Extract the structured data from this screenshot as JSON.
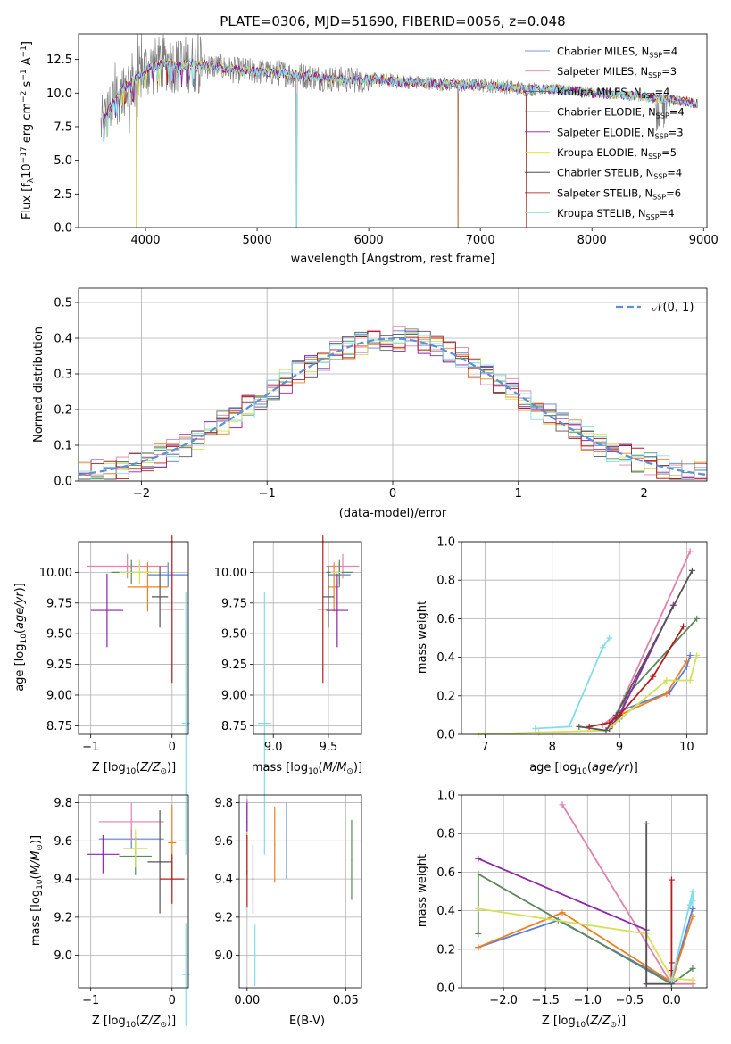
{
  "chart_data": [
    {
      "type": "line",
      "title": "PLATE=0306, MJD=51690, FIBERID=0056, z=0.048",
      "xlabel": "wavelength [Angstrom, rest frame]",
      "ylabel": "Flux [f_λ 10^-17 erg cm^-2 s^-1 A^-1]",
      "xlim": [
        3400,
        9030
      ],
      "ylim": [
        0,
        14.4
      ],
      "xticks": [
        4000,
        5000,
        6000,
        7000,
        8000,
        9000
      ],
      "yticks": [
        0.0,
        2.5,
        5.0,
        7.5,
        10.0,
        12.5
      ],
      "legend": "top-right",
      "series": [
        {
          "name": "Chabrier MILES, N_SSP=4",
          "color": "#4f6fd0"
        },
        {
          "name": "Salpeter MILES, N_SSP=3",
          "color": "#e889a6"
        },
        {
          "name": "Kroupa MILES, N_SSP=4",
          "color": "#3b4f9a"
        },
        {
          "name": "Chabrier ELODIE, N_SSP=4",
          "color": "#3e7a3e"
        },
        {
          "name": "Salpeter ELODIE, N_SSP=3",
          "color": "#8a1fa0"
        },
        {
          "name": "Kroupa ELODIE, N_SSP=5",
          "color": "#e6e600"
        },
        {
          "name": "Chabrier STELIB, N_SSP=4",
          "color": "#333333"
        },
        {
          "name": "Salpeter STELIB, N_SSP=6",
          "color": "#b30000"
        },
        {
          "name": "Kroupa STELIB, N_SSP=4",
          "color": "#7fdede"
        }
      ],
      "spectrum_shape": {
        "x": [
          3600,
          3700,
          3800,
          3900,
          4000,
          4100,
          4200,
          4300,
          4400,
          4600,
          4800,
          5000,
          5200,
          5400,
          5600,
          5800,
          6000,
          6200,
          6400,
          6600,
          6800,
          7000,
          7200,
          7400,
          7600,
          7800,
          8000,
          8200,
          8400,
          8600,
          8800,
          9000
        ],
        "y": [
          7.5,
          9.2,
          10.4,
          11.0,
          11.8,
          12.0,
          12.3,
          12.0,
          12.2,
          12.0,
          11.7,
          11.6,
          11.5,
          11.3,
          11.1,
          11.0,
          11.0,
          10.9,
          10.8,
          10.7,
          10.6,
          10.6,
          10.5,
          10.3,
          10.3,
          10.2,
          10.0,
          9.9,
          9.8,
          9.6,
          9.4,
          9.2
        ]
      }
    },
    {
      "type": "line",
      "xlabel": "(data-model)/error",
      "ylabel": "Normed distribution",
      "xlim": [
        -2.5,
        2.5
      ],
      "ylim": [
        0,
        0.54
      ],
      "xticks": [
        -2,
        -1,
        0,
        1,
        2
      ],
      "yticks": [
        0.0,
        0.1,
        0.2,
        0.3,
        0.4,
        0.5
      ],
      "legend": "top-right",
      "legend_label": "𝒩(0, 1)",
      "bin_width": 0.1
    },
    {
      "type": "scatter",
      "xlabel": "Z [log10(Z/Z⊙)]",
      "ylabel": "age  [log10(age/yr)]",
      "xlim": [
        -1.15,
        0.2
      ],
      "ylim": [
        8.68,
        10.25
      ],
      "xticks": [
        -1,
        0
      ],
      "yticks": [
        8.75,
        9.0,
        9.25,
        9.5,
        9.75,
        10.0
      ]
    },
    {
      "type": "scatter",
      "xlabel": "mass [log10(M/M⊙)]",
      "xlim": [
        8.82,
        9.8
      ],
      "ylim": [
        8.68,
        10.25
      ],
      "xticks": [
        9.0,
        9.5
      ],
      "yticks": [
        8.75,
        9.0,
        9.25,
        9.5,
        9.75,
        10.0
      ]
    },
    {
      "type": "line",
      "xlabel": "age  [log10(age/yr)]",
      "ylabel": "mass weight",
      "xlim": [
        6.65,
        10.3
      ],
      "ylim": [
        0,
        1.0
      ],
      "xticks": [
        7,
        8,
        9,
        10
      ],
      "yticks": [
        0.0,
        0.2,
        0.4,
        0.6,
        0.8,
        1.0
      ]
    },
    {
      "type": "scatter",
      "xlabel": "Z [log10(Z/Z⊙)]",
      "ylabel": "mass [log10(M/M⊙)]",
      "xlim": [
        -1.15,
        0.2
      ],
      "ylim": [
        8.83,
        9.84
      ],
      "xticks": [
        -1,
        0
      ],
      "yticks": [
        9.0,
        9.2,
        9.4,
        9.6,
        9.8
      ]
    },
    {
      "type": "scatter",
      "xlabel": "E(B-V)",
      "xlim": [
        -0.004,
        0.058
      ],
      "ylim": [
        8.83,
        9.84
      ],
      "xticks": [
        0.0,
        0.05
      ],
      "xticklabels": [
        "0.00",
        "0.05"
      ],
      "yticks": [
        9.0,
        9.2,
        9.4,
        9.6,
        9.8
      ]
    },
    {
      "type": "line",
      "xlabel": "Z [log10(Z/Z⊙)]",
      "ylabel": "mass weight",
      "xlim": [
        -2.5,
        0.42
      ],
      "ylim": [
        0,
        1.0
      ],
      "xticks": [
        -2.0,
        -1.5,
        -1.0,
        -0.5,
        0.0
      ],
      "yticks": [
        0.0,
        0.2,
        0.4,
        0.6,
        0.8,
        1.0
      ]
    }
  ],
  "model_colors": [
    "#5b7fd6",
    "#e57fae",
    "#ef7f1f",
    "#5a8a5a",
    "#8e24aa",
    "#d4e157",
    "#555555",
    "#b71c1c",
    "#80deea"
  ],
  "errorbars": {
    "age_vs_Z": [
      {
        "c": 0,
        "x": -0.05,
        "xe": 0.25,
        "y": 9.98,
        "ye": 0.1
      },
      {
        "c": 1,
        "x": -0.55,
        "xe": 0.5,
        "y": 10.05,
        "ye": 0.1
      },
      {
        "c": 2,
        "x": -0.3,
        "xe": 0.25,
        "y": 9.88,
        "ye": 0.2
      },
      {
        "c": 3,
        "x": -0.5,
        "xe": 0.25,
        "y": 10.0,
        "ye": 0.1
      },
      {
        "c": 4,
        "x": -0.8,
        "xe": 0.2,
        "y": 9.69,
        "ye": 0.3
      },
      {
        "c": 5,
        "x": -0.4,
        "xe": 0.25,
        "y": 10.0,
        "ye": 0.1
      },
      {
        "c": 6,
        "x": -0.15,
        "xe": 0.1,
        "y": 9.8,
        "ye": 0.25
      },
      {
        "c": 7,
        "x": 0.0,
        "xe": 0.15,
        "y": 9.7,
        "ye": 0.6
      },
      {
        "c": 8,
        "x": 0.17,
        "xe": 0.05,
        "y": 8.77,
        "ye": 1.07
      }
    ],
    "age_vs_mass": [
      {
        "c": 0,
        "x": 9.6,
        "xe": 0.1,
        "y": 9.98,
        "ye": 0.1
      },
      {
        "c": 1,
        "x": 9.63,
        "xe": 0.15,
        "y": 10.05,
        "ye": 0.1
      },
      {
        "c": 2,
        "x": 9.55,
        "xe": 0.05,
        "y": 9.88,
        "ye": 0.2
      },
      {
        "c": 3,
        "x": 9.6,
        "xe": 0.12,
        "y": 10.0,
        "ye": 0.1
      },
      {
        "c": 4,
        "x": 9.58,
        "xe": 0.1,
        "y": 9.69,
        "ye": 0.3
      },
      {
        "c": 5,
        "x": 9.57,
        "xe": 0.05,
        "y": 10.0,
        "ye": 0.1
      },
      {
        "c": 6,
        "x": 9.5,
        "xe": 0.05,
        "y": 9.8,
        "ye": 0.25
      },
      {
        "c": 7,
        "x": 9.45,
        "xe": 0.05,
        "y": 9.7,
        "ye": 0.6
      },
      {
        "c": 8,
        "x": 8.92,
        "xe": 0.06,
        "y": 8.77,
        "ye": 1.07
      }
    ],
    "mass_vs_Z": [
      {
        "c": 0,
        "x": -0.5,
        "xe": 0.4,
        "y": 9.61,
        "ye": 0.05
      },
      {
        "c": 1,
        "x": -0.5,
        "xe": 0.4,
        "y": 9.7,
        "ye": 0.1
      },
      {
        "c": 2,
        "x": 0.0,
        "xe": 0.05,
        "y": 9.59,
        "ye": 0.2
      },
      {
        "c": 3,
        "x": -0.45,
        "xe": 0.2,
        "y": 9.52,
        "ye": 0.1
      },
      {
        "c": 4,
        "x": -0.85,
        "xe": 0.2,
        "y": 9.53,
        "ye": 0.1
      },
      {
        "c": 5,
        "x": -0.45,
        "xe": 0.15,
        "y": 9.56,
        "ye": 0.1
      },
      {
        "c": 6,
        "x": -0.15,
        "xe": 0.15,
        "y": 9.49,
        "ye": 0.27
      },
      {
        "c": 7,
        "x": 0.0,
        "xe": 0.15,
        "y": 9.4,
        "ye": 0.13
      },
      {
        "c": 8,
        "x": 0.17,
        "xe": 0.05,
        "y": 8.9,
        "ye": 0.27
      }
    ],
    "mass_vs_ebv": [
      {
        "c": 0,
        "x": 0.0,
        "xe": 0.0003,
        "y": 9.62,
        "ye": 0.2
      },
      {
        "c": 1,
        "x": 0.0,
        "xe": 0.0003,
        "y": 9.72,
        "ye": 0.1
      },
      {
        "c": 2,
        "x": 0.014,
        "xe": 0.0003,
        "y": 9.58,
        "ye": 0.2
      },
      {
        "c": 3,
        "x": 0.053,
        "xe": 0.0003,
        "y": 9.5,
        "ye": 0.21
      },
      {
        "c": 4,
        "x": 0.0,
        "xe": 0.0003,
        "y": 9.7,
        "ye": 0.1
      },
      {
        "c": 5,
        "x": 0.0,
        "xe": 0.0003,
        "y": 9.55,
        "ye": 0.1
      },
      {
        "c": 6,
        "x": 0.003,
        "xe": 0.0003,
        "y": 9.4,
        "ye": 0.18
      },
      {
        "c": 7,
        "x": 0.0,
        "xe": 0.0003,
        "y": 9.44,
        "ye": 0.19
      },
      {
        "c": 8,
        "x": 0.004,
        "xe": 0.0003,
        "y": 9.0,
        "ye": 0.16
      }
    ],
    "ebv_blue": {
      "x": 0.02,
      "y": 9.6,
      "ye": 0.2
    }
  },
  "weights_vs_age": [
    {
      "c": 0,
      "pts": [
        [
          8.9,
          0.08
        ],
        [
          9.0,
          0.12
        ],
        [
          9.75,
          0.22
        ],
        [
          10.0,
          0.35
        ],
        [
          10.05,
          0.41
        ]
      ]
    },
    {
      "c": 1,
      "pts": [
        [
          8.75,
          0.05
        ],
        [
          8.95,
          0.1
        ],
        [
          10.05,
          0.95
        ]
      ]
    },
    {
      "c": 2,
      "pts": [
        [
          8.9,
          0.05
        ],
        [
          9.0,
          0.1
        ],
        [
          9.7,
          0.21
        ],
        [
          10.0,
          0.38
        ]
      ]
    },
    {
      "c": 3,
      "pts": [
        [
          8.85,
          0.03
        ],
        [
          9.0,
          0.08
        ],
        [
          9.1,
          0.2
        ],
        [
          10.15,
          0.6
        ]
      ]
    },
    {
      "c": 4,
      "pts": [
        [
          8.85,
          0.03
        ],
        [
          9.0,
          0.1
        ],
        [
          9.8,
          0.67
        ]
      ]
    },
    {
      "c": 5,
      "pts": [
        [
          6.9,
          0.0
        ],
        [
          7.8,
          0.01
        ],
        [
          8.8,
          0.02
        ],
        [
          9.7,
          0.28
        ],
        [
          10.05,
          0.28
        ],
        [
          10.15,
          0.41
        ]
      ]
    },
    {
      "c": 6,
      "pts": [
        [
          8.4,
          0.04
        ],
        [
          8.8,
          0.02
        ],
        [
          8.95,
          0.1
        ],
        [
          10.08,
          0.85
        ]
      ]
    },
    {
      "c": 7,
      "pts": [
        [
          8.55,
          0.04
        ],
        [
          8.85,
          0.06
        ],
        [
          9.0,
          0.1
        ],
        [
          9.5,
          0.3
        ],
        [
          9.95,
          0.56
        ]
      ]
    },
    {
      "c": 8,
      "pts": [
        [
          7.75,
          0.03
        ],
        [
          8.25,
          0.04
        ],
        [
          8.75,
          0.45
        ],
        [
          8.85,
          0.5
        ]
      ]
    }
  ],
  "weights_vs_Z": [
    {
      "c": 0,
      "pts": [
        [
          -2.3,
          0.21
        ],
        [
          -1.35,
          0.35
        ],
        [
          0.0,
          0.03
        ],
        [
          0.25,
          0.41
        ]
      ]
    },
    {
      "c": 1,
      "pts": [
        [
          -1.3,
          0.95
        ],
        [
          0.0,
          0.02
        ],
        [
          0.25,
          0.02
        ]
      ]
    },
    {
      "c": 2,
      "pts": [
        [
          -2.3,
          0.21
        ],
        [
          -1.3,
          0.39
        ],
        [
          0.0,
          0.03
        ],
        [
          0.25,
          0.37
        ]
      ]
    },
    {
      "c": 3,
      "pts": [
        [
          -2.3,
          0.28
        ],
        [
          -2.3,
          0.59
        ],
        [
          0.0,
          0.02
        ],
        [
          0.25,
          0.1
        ]
      ]
    },
    {
      "c": 4,
      "pts": [
        [
          -2.3,
          0.67
        ],
        [
          -0.3,
          0.3
        ],
        [
          -0.3,
          0.02
        ]
      ]
    },
    {
      "c": 5,
      "pts": [
        [
          -2.3,
          0.41
        ],
        [
          -0.3,
          0.28
        ],
        [
          0.0,
          0.05
        ],
        [
          0.25,
          0.04
        ]
      ]
    },
    {
      "c": 6,
      "pts": [
        [
          -0.3,
          0.85
        ],
        [
          -0.3,
          0.02
        ],
        [
          0.0,
          0.02
        ]
      ]
    },
    {
      "c": 7,
      "pts": [
        [
          0.0,
          0.56
        ],
        [
          0.0,
          0.13
        ],
        [
          0.0,
          0.09
        ],
        [
          0.0,
          0.04
        ]
      ]
    },
    {
      "c": 8,
      "pts": [
        [
          0.0,
          0.04
        ],
        [
          0.25,
          0.5
        ],
        [
          0.25,
          0.45
        ],
        [
          0.22,
          0.43
        ]
      ]
    }
  ]
}
